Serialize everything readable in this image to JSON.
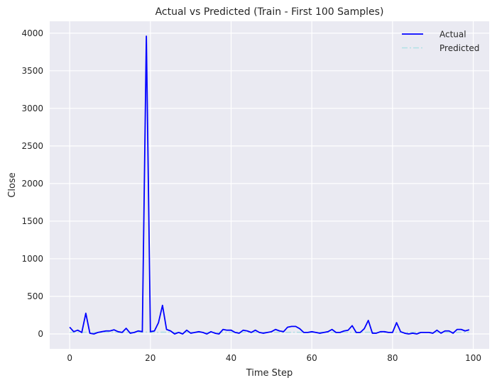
{
  "chart_data": {
    "type": "line",
    "title": "Actual vs Predicted (Train - First 100 Samples)",
    "xlabel": "Time Step",
    "ylabel": "Close",
    "xlim": [
      -4.95,
      103.95
    ],
    "ylim": [
      -198,
      4158
    ],
    "xticks": [
      0,
      20,
      40,
      60,
      80,
      100
    ],
    "yticks": [
      0,
      500,
      1000,
      1500,
      2000,
      2500,
      3000,
      3500,
      4000
    ],
    "grid": true,
    "legend_position": "top-right",
    "background": "#eaeaf2",
    "x": [
      0,
      1,
      2,
      3,
      4,
      5,
      6,
      7,
      8,
      9,
      10,
      11,
      12,
      13,
      14,
      15,
      16,
      17,
      18,
      19,
      20,
      21,
      22,
      23,
      24,
      25,
      26,
      27,
      28,
      29,
      30,
      31,
      32,
      33,
      34,
      35,
      36,
      37,
      38,
      39,
      40,
      41,
      42,
      43,
      44,
      45,
      46,
      47,
      48,
      49,
      50,
      51,
      52,
      53,
      54,
      55,
      56,
      57,
      58,
      59,
      60,
      61,
      62,
      63,
      64,
      65,
      66,
      67,
      68,
      69,
      70,
      71,
      72,
      73,
      74,
      75,
      76,
      77,
      78,
      79,
      80,
      81,
      82,
      83,
      84,
      85,
      86,
      87,
      88,
      89,
      90,
      91,
      92,
      93,
      94,
      95,
      96,
      97,
      98,
      99
    ],
    "series": [
      {
        "name": "Actual",
        "color": "#0000ff",
        "style": "solid",
        "values": [
          90,
          30,
          50,
          20,
          275,
          10,
          0,
          20,
          30,
          40,
          40,
          55,
          30,
          20,
          75,
          10,
          20,
          40,
          30,
          3960,
          30,
          40,
          150,
          380,
          60,
          40,
          0,
          20,
          0,
          50,
          10,
          20,
          30,
          20,
          0,
          30,
          10,
          0,
          60,
          50,
          50,
          20,
          10,
          50,
          40,
          20,
          50,
          20,
          10,
          20,
          30,
          60,
          40,
          30,
          90,
          100,
          100,
          70,
          20,
          20,
          30,
          20,
          10,
          20,
          30,
          60,
          20,
          20,
          40,
          50,
          110,
          20,
          20,
          70,
          180,
          10,
          10,
          30,
          30,
          20,
          20,
          150,
          30,
          10,
          0,
          10,
          0,
          20,
          20,
          20,
          10,
          50,
          10,
          40,
          40,
          10,
          60,
          60,
          40,
          55
        ]
      },
      {
        "name": "Predicted",
        "color": "#b0e0e6",
        "style": "dashdot",
        "values": [
          20,
          22,
          21,
          20,
          23,
          22,
          21,
          20,
          22,
          23,
          24,
          22,
          21,
          20,
          22,
          21,
          20,
          22,
          23,
          25,
          22,
          21,
          22,
          24,
          23,
          22,
          21,
          20,
          21,
          22,
          23,
          22,
          21,
          20,
          21,
          22,
          23,
          22,
          21,
          22,
          23,
          22,
          21,
          22,
          23,
          22,
          21,
          20,
          21,
          22,
          23,
          22,
          21,
          20,
          21,
          22,
          23,
          22,
          21,
          20,
          21,
          22,
          23,
          22,
          21,
          20,
          21,
          22,
          23,
          22,
          21,
          20,
          21,
          22,
          23,
          22,
          21,
          20,
          21,
          22,
          23,
          22,
          21,
          20,
          21,
          22,
          23,
          22,
          21,
          20,
          21,
          22,
          23,
          22,
          21,
          20,
          21,
          22,
          23,
          22
        ]
      }
    ]
  }
}
